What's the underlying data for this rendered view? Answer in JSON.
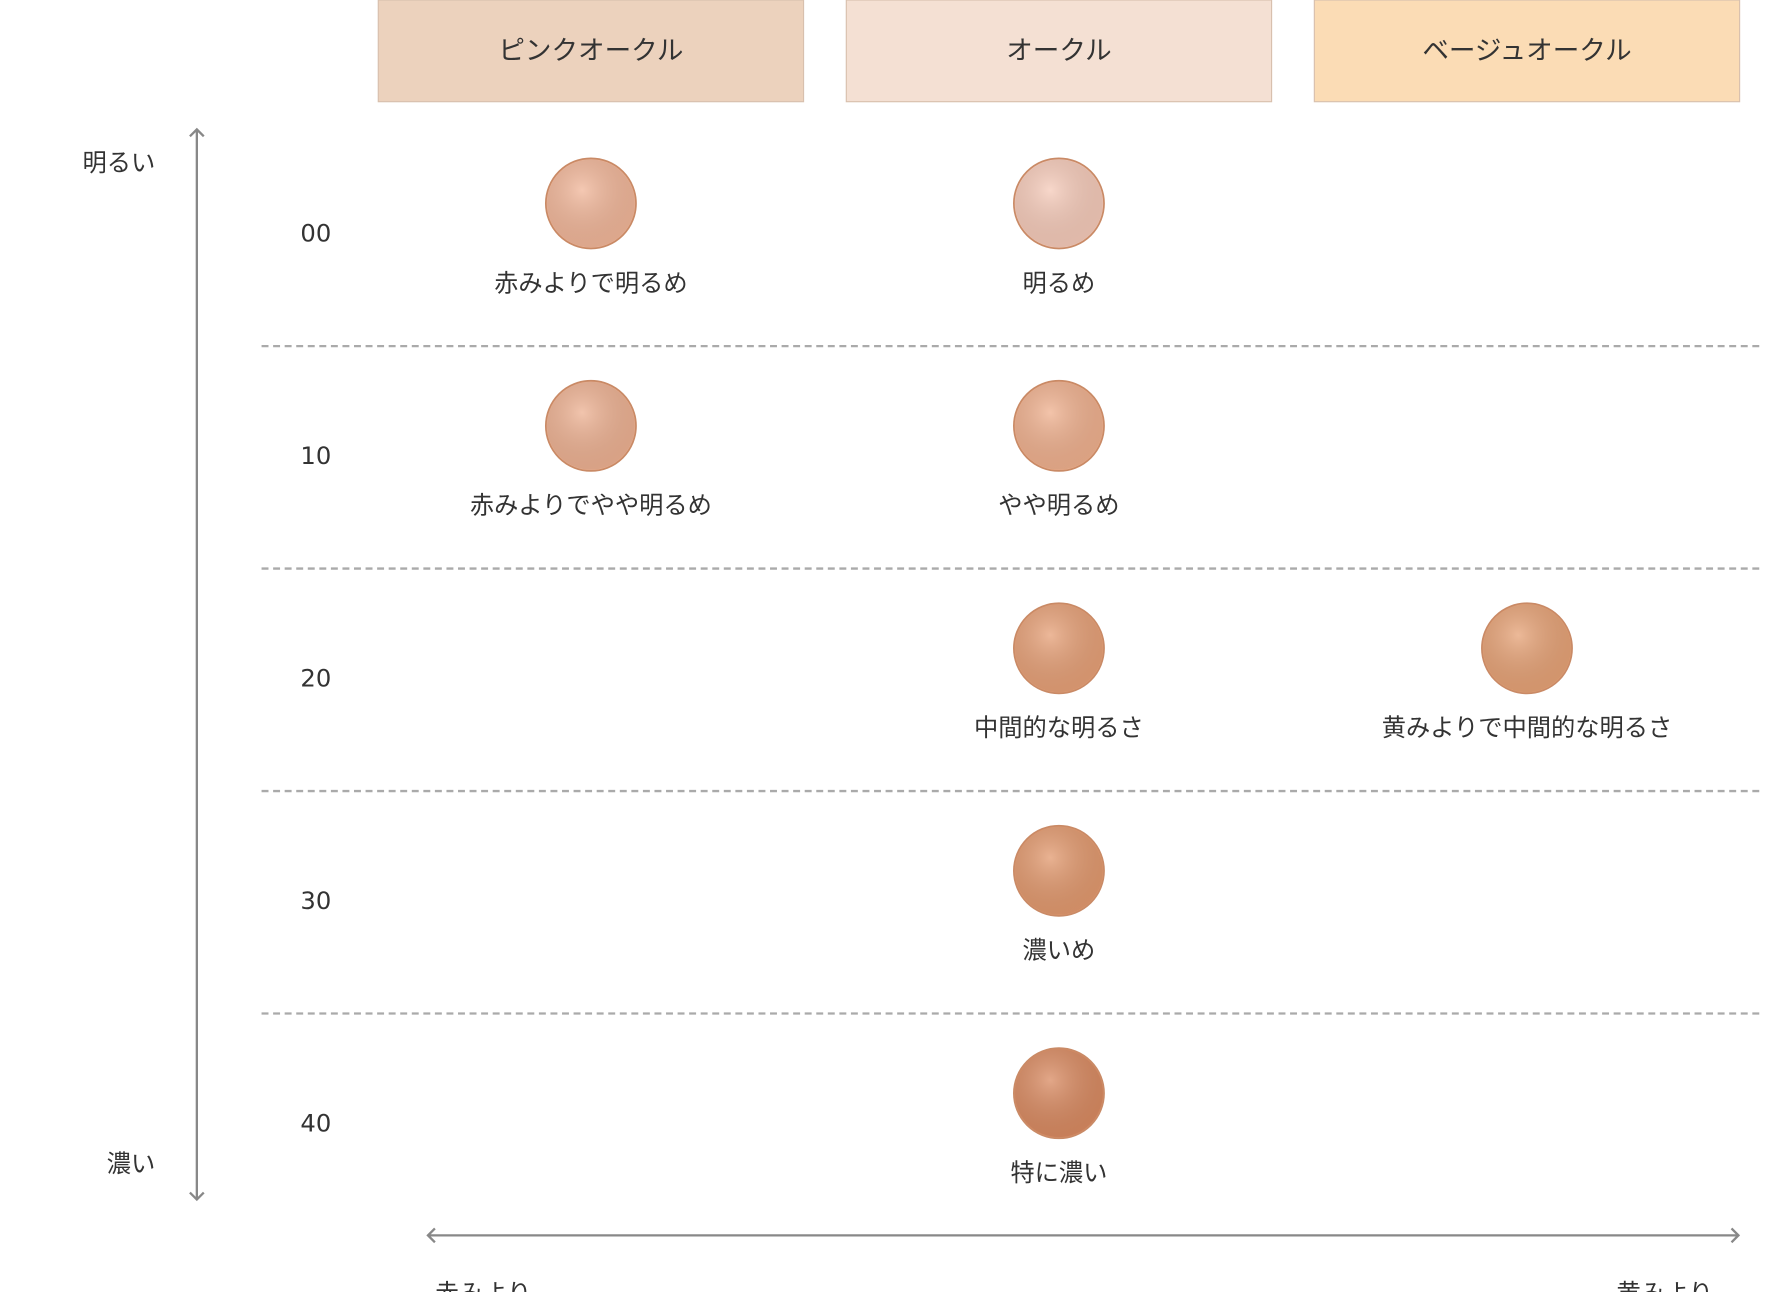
{
  "columns": [
    "ピンクオークル",
    "オークル",
    "ベージュオークル"
  ],
  "column_colors": [
    "#ecd2bd",
    "#f4e0d3",
    "#fbdcb5"
  ],
  "vertical_axis": {
    "top": "明るい",
    "bottom": "濃い"
  },
  "horizontal_axis": {
    "left": "赤みより",
    "right": "黄みより"
  },
  "rows": [
    {
      "label": "00",
      "cells": [
        {
          "label": "赤みよりで明るめ",
          "color": "#f1b699"
        },
        {
          "label": "明るめ",
          "color": "#f5cab9"
        },
        null
      ]
    },
    {
      "label": "10",
      "cells": [
        {
          "label": "赤みよりでやや明るめ",
          "color": "#edb192"
        },
        {
          "label": "やや明るめ",
          "color": "#efb08e"
        },
        null
      ]
    },
    {
      "label": "20",
      "cells": [
        null,
        {
          "label": "中間的な明るさ",
          "color": "#e6a077"
        },
        {
          "label": "黄みよりで中間的な明るさ",
          "color": "#e6a276"
        }
      ]
    },
    {
      "label": "30",
      "cells": [
        null,
        {
          "label": "濃いめ",
          "color": "#e2996e"
        },
        null
      ]
    },
    {
      "label": "40",
      "cells": [
        null,
        {
          "label": "特に濃い",
          "color": "#d98a61"
        },
        null
      ]
    }
  ]
}
